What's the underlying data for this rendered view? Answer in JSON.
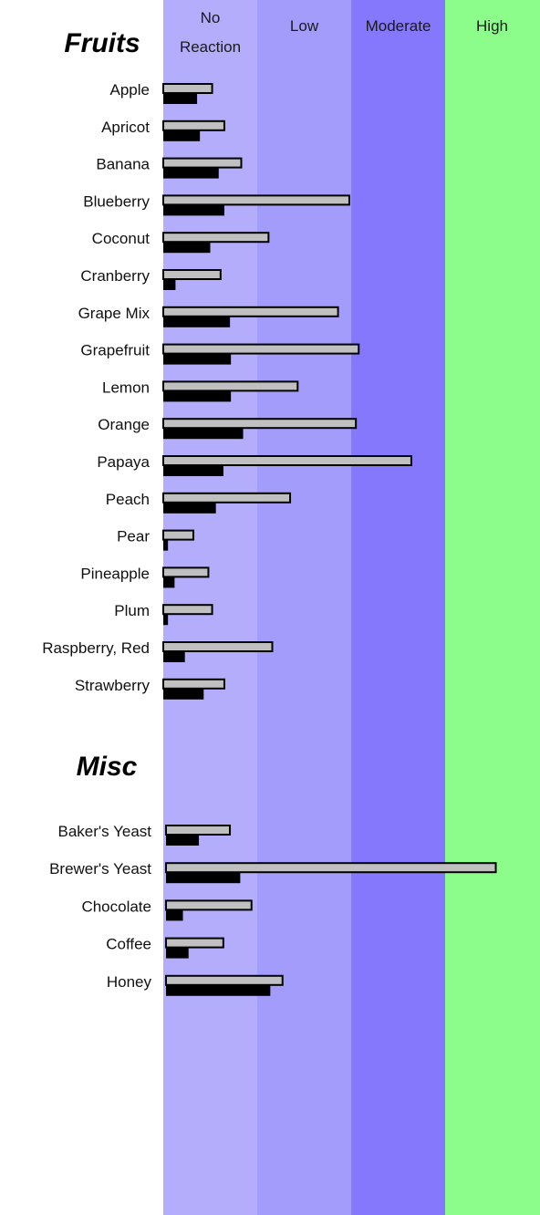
{
  "colors": {
    "zone_no_reaction": "#b3adfb",
    "zone_low": "#a49cfb",
    "zone_moderate": "#8578fd",
    "zone_high": "#8cfd8a",
    "bar_primary": "#c0c0c0",
    "bar_secondary": "#000000"
  },
  "chart_data": {
    "type": "bar",
    "orientation": "horizontal",
    "zones": [
      {
        "label": "No Reaction",
        "lines": [
          "No",
          "Reaction"
        ]
      },
      {
        "label": "Low",
        "lines": [
          "Low"
        ]
      },
      {
        "label": "Moderate",
        "lines": [
          "Moderate"
        ]
      },
      {
        "label": "High",
        "lines": [
          "High"
        ]
      }
    ],
    "scale_note": "values expressed in zone units (0 = start of No Reaction, 4 = end of High)",
    "xlim": [
      0,
      4
    ],
    "groups": [
      {
        "title": "Fruits",
        "categories": [
          "Apple",
          "Apricot",
          "Banana",
          "Blueberry",
          "Coconut",
          "Cranberry",
          "Grape Mix",
          "Grapefruit",
          "Lemon",
          "Orange",
          "Papaya",
          "Peach",
          "Pear",
          "Pineapple",
          "Plum",
          "Raspberry, Red",
          "Strawberry"
        ],
        "series": [
          {
            "values": [
              0.52,
              0.65,
              0.83,
              1.98,
              1.12,
              0.61,
              1.86,
              2.08,
              1.43,
              2.05,
              2.64,
              1.35,
              0.32,
              0.48,
              0.52,
              1.16,
              0.65
            ]
          },
          {
            "values": [
              0.36,
              0.39,
              0.59,
              0.65,
              0.5,
              0.13,
              0.71,
              0.72,
              0.72,
              0.85,
              0.64,
              0.56,
              0.05,
              0.12,
              0.05,
              0.23,
              0.43
            ]
          }
        ]
      },
      {
        "title": "Misc",
        "categories": [
          "Baker's Yeast",
          "Brewer's Yeast",
          "Chocolate",
          "Coffee",
          "Honey"
        ],
        "series": [
          {
            "values": [
              0.68,
              3.51,
              0.91,
              0.61,
              1.24
            ]
          },
          {
            "values": [
              0.35,
              0.79,
              0.18,
              0.24,
              1.11
            ]
          }
        ]
      }
    ]
  }
}
